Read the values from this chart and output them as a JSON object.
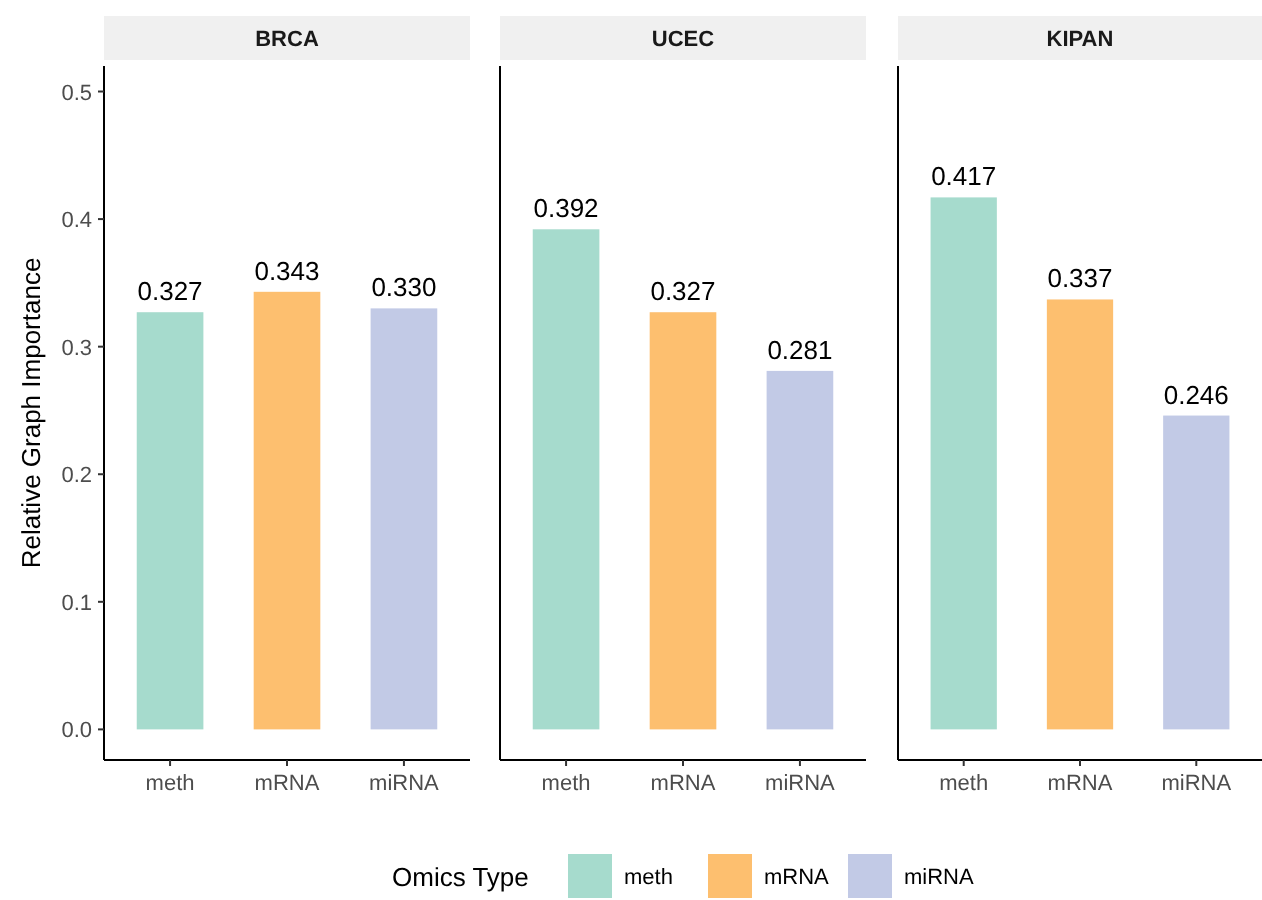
{
  "chart_data": [
    {
      "type": "bar",
      "title": "BRCA",
      "ylabel": "Relative Graph Importance",
      "categories": [
        "meth",
        "mRNA",
        "miRNA"
      ],
      "series": [
        {
          "name": "meth",
          "color": "#a6dbcd",
          "values": [
            0.327,
            null,
            null
          ],
          "value_labels": [
            "0.327",
            null,
            null
          ]
        },
        {
          "name": "mRNA",
          "color": "#fdbf6f",
          "values": [
            null,
            0.343,
            null
          ],
          "value_labels": [
            null,
            "0.343",
            null
          ]
        },
        {
          "name": "miRNA",
          "color": "#c2cae6",
          "values": [
            null,
            null,
            0.33
          ],
          "value_labels": [
            null,
            null,
            "0.330"
          ]
        }
      ],
      "ylim": [
        -0.024,
        0.52
      ],
      "yticks": [
        {
          "value": 0,
          "label": "0.0"
        },
        0.1,
        0.2,
        0.3,
        0.4,
        0.5
      ],
      "legend": "bottom",
      "legend_title": "Omics Type"
    },
    {
      "type": "bar",
      "title": "UCEC",
      "categories": [
        "meth",
        "mRNA",
        "miRNA"
      ],
      "series": [
        {
          "color": "#a6dbcd",
          "values": [
            0.392,
            null,
            null
          ],
          "value_labels": [
            "0.392",
            null,
            null
          ]
        },
        {
          "color": "#fdbf6f",
          "values": [
            null,
            0.327,
            null
          ],
          "value_labels": [
            null,
            "0.327",
            null
          ]
        },
        {
          "color": "#c2cae6",
          "values": [
            null,
            null,
            0.281
          ],
          "value_labels": [
            null,
            null,
            "0.281"
          ]
        }
      ],
      "ylim": [
        -0.024,
        0.52
      ],
      "tick_labels": "x"
    },
    {
      "type": "bar",
      "title": "KIPAN",
      "categories": [
        "meth",
        "mRNA",
        "miRNA"
      ],
      "series": [
        {
          "color": "#a6dbcd",
          "values": [
            0.417,
            null,
            null
          ],
          "value_labels": [
            "0.417",
            null,
            null
          ]
        },
        {
          "color": "#fdbf6f",
          "values": [
            null,
            0.337,
            null
          ],
          "value_labels": [
            null,
            "0.337",
            null
          ]
        },
        {
          "color": "#c2cae6",
          "values": [
            null,
            null,
            0.246
          ],
          "value_labels": [
            null,
            null,
            "0.246"
          ]
        }
      ],
      "ylim": [
        -0.024,
        0.52
      ],
      "tick_labels": "x"
    }
  ]
}
